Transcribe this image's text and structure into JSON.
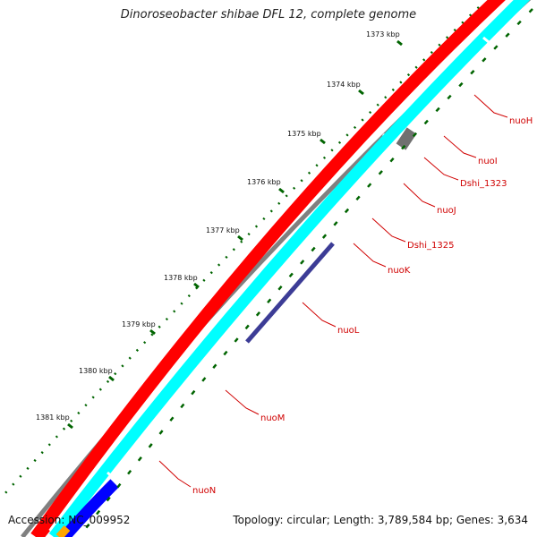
{
  "header": {
    "title": "Dinoroseobacter shibae DFL 12, complete genome"
  },
  "footer": {
    "accession": "Accession: NC_009952",
    "summary": "Topology: circular; Length: 3,789,584 bp; Genes: 3,634"
  },
  "scale": {
    "tick_labels": [
      "1373 kbp",
      "1374 kbp",
      "1375 kbp",
      "1376 kbp",
      "1377 kbp",
      "1378 kbp",
      "1379 kbp",
      "1380 kbp",
      "1381 kbp"
    ]
  },
  "gene_labels": [
    "nuoH",
    "nuoI",
    "Dshi_1323",
    "nuoJ",
    "Dshi_1325",
    "nuoK",
    "nuoL",
    "nuoM",
    "nuoN"
  ],
  "colors": {
    "cds_forward": "#ff0000",
    "cds_reverse": "#00ffff",
    "backbone": "#808080",
    "highlight_dark": "#3c3c96",
    "blue": "#0000ff",
    "orange": "#ffa500",
    "gray_feature": "#707070",
    "ticks": "#006400",
    "label": "#d00000"
  }
}
